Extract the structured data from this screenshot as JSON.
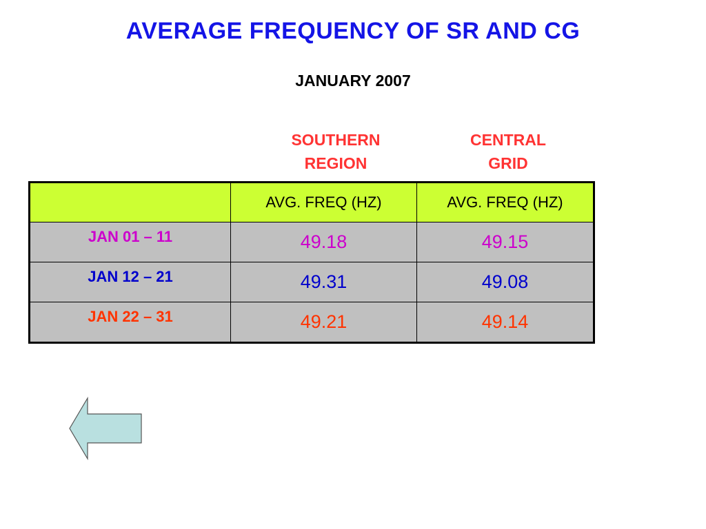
{
  "slide": {
    "title": "AVERAGE FREQUENCY OF SR AND CG",
    "subtitle": "JANUARY 2007",
    "colors": {
      "title": "#1414e6",
      "column_labels": "#ff3333",
      "header_row_bg": "#ccff33",
      "data_row_bg": "#c0c0c0",
      "magenta": "#cc00cc",
      "blue": "#0000cc",
      "red": "#ff3300",
      "arrow_fill": "#b9e0e0"
    }
  },
  "columns": {
    "southern": [
      "SOUTHERN",
      "REGION"
    ],
    "central": [
      "CENTRAL",
      "GRID"
    ]
  },
  "table": {
    "header": [
      "",
      "AVG. FREQ (HZ)",
      "AVG. FREQ (HZ)"
    ],
    "rows": [
      {
        "period": "JAN 01 – 11",
        "sr": "49.18",
        "cg": "49.15",
        "color": "#cc00cc"
      },
      {
        "period": "JAN 12 – 21",
        "sr": "49.31",
        "cg": "49.08",
        "color": "#0000cc"
      },
      {
        "period": "JAN 22 – 31",
        "sr": "49.21",
        "cg": "49.14",
        "color": "#ff3300"
      }
    ]
  },
  "navigation": {
    "back_icon": "left-arrow-icon"
  }
}
